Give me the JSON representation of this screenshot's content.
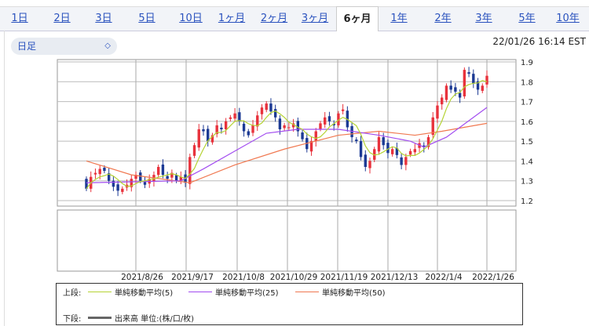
{
  "tabs": [
    "1日",
    "2日",
    "3日",
    "5日",
    "10日",
    "1ヶ月",
    "2ヶ月",
    "3ヶ月",
    "6ヶ月",
    "1年",
    "2年",
    "3年",
    "5年",
    "10年"
  ],
  "active_tab": "6ヶ月",
  "period_select": {
    "value": "日足",
    "icon": "chevron-up-down-icon"
  },
  "timestamp": "22/01/26 16:14 EST",
  "legend": {
    "upper_label": "上段:",
    "lower_label": "下段:",
    "ma5": "単純移動平均(5)",
    "ma25": "単純移動平均(25)",
    "ma50": "単純移動平均(50)",
    "volume": "出来高 単位:(株/口/枚)"
  },
  "chart_data": {
    "type": "candlestick",
    "ylim": [
      1.2,
      1.9
    ],
    "yticks": [
      "1.9",
      "1.8",
      "1.7",
      "1.6",
      "1.5",
      "1.4",
      "1.3",
      "1.2"
    ],
    "xticks": [
      "2021/8/26",
      "2021/9/17",
      "2021/10/8",
      "2021/10/29",
      "2021/11/19",
      "2021/12/13",
      "2022/1/4",
      "2022/1/26"
    ],
    "colors": {
      "up": "#e8323c",
      "down": "#1c3a94",
      "ma5": "#b5d334",
      "ma25": "#a24cf0",
      "ma50": "#f07850",
      "volume": "#666666"
    },
    "close": [
      1.26,
      1.32,
      1.34,
      1.36,
      1.35,
      1.3,
      1.27,
      1.25,
      1.26,
      1.28,
      1.31,
      1.33,
      1.3,
      1.28,
      1.31,
      1.33,
      1.37,
      1.33,
      1.31,
      1.34,
      1.3,
      1.32,
      1.29,
      1.42,
      1.48,
      1.56,
      1.55,
      1.5,
      1.53,
      1.58,
      1.56,
      1.6,
      1.62,
      1.64,
      1.6,
      1.55,
      1.53,
      1.58,
      1.63,
      1.67,
      1.69,
      1.65,
      1.62,
      1.56,
      1.58,
      1.57,
      1.59,
      1.55,
      1.51,
      1.46,
      1.5,
      1.55,
      1.59,
      1.62,
      1.6,
      1.58,
      1.64,
      1.66,
      1.57,
      1.52,
      1.5,
      1.42,
      1.37,
      1.4,
      1.46,
      1.52,
      1.48,
      1.44,
      1.46,
      1.43,
      1.38,
      1.42,
      1.45,
      1.46,
      1.49,
      1.47,
      1.52,
      1.62,
      1.68,
      1.72,
      1.78,
      1.76,
      1.75,
      1.72,
      1.86,
      1.84,
      1.79,
      1.76,
      1.78,
      1.83
    ],
    "open_first": 1.31,
    "ma25": [
      [
        0,
        1.29
      ],
      [
        21,
        1.3
      ],
      [
        26,
        1.36
      ],
      [
        33,
        1.45
      ],
      [
        40,
        1.54
      ],
      [
        47,
        1.56
      ],
      [
        56,
        1.56
      ],
      [
        65,
        1.53
      ],
      [
        72,
        1.5
      ],
      [
        75,
        1.47
      ],
      [
        80,
        1.52
      ],
      [
        89,
        1.67
      ]
    ],
    "ma50": [
      [
        0,
        1.4
      ],
      [
        10,
        1.33
      ],
      [
        23,
        1.29
      ],
      [
        33,
        1.38
      ],
      [
        44,
        1.46
      ],
      [
        56,
        1.53
      ],
      [
        65,
        1.55
      ],
      [
        73,
        1.53
      ],
      [
        79,
        1.55
      ],
      [
        89,
        1.59
      ]
    ]
  }
}
